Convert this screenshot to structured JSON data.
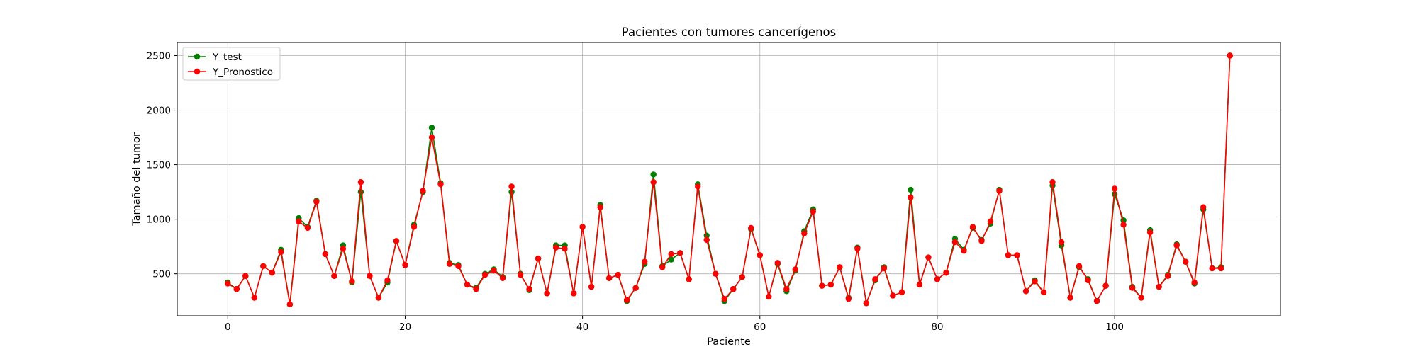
{
  "chart_data": {
    "type": "line",
    "title": "Pacientes con tumores cancerígenos",
    "xlabel": "Paciente",
    "ylabel": "Tamaño del tumor",
    "xlim": [
      -5.7,
      118.7
    ],
    "ylim": [
      115,
      2620
    ],
    "xticks": [
      0,
      20,
      40,
      60,
      80,
      100
    ],
    "yticks": [
      500,
      1000,
      1500,
      2000,
      2500
    ],
    "grid": true,
    "legend_position": "top-left",
    "series": [
      {
        "name": "Y_test",
        "color": "#008000",
        "values": [
          420,
          360,
          480,
          280,
          570,
          510,
          720,
          220,
          1010,
          930,
          1170,
          680,
          480,
          760,
          420,
          1250,
          480,
          280,
          420,
          800,
          580,
          950,
          1250,
          1840,
          1330,
          600,
          580,
          400,
          370,
          500,
          540,
          470,
          1250,
          500,
          350,
          640,
          320,
          760,
          760,
          320,
          930,
          380,
          1130,
          460,
          490,
          250,
          370,
          590,
          1410,
          570,
          630,
          690,
          450,
          1320,
          850,
          500,
          250,
          360,
          470,
          910,
          670,
          290,
          590,
          340,
          530,
          890,
          1090,
          390,
          400,
          560,
          280,
          740,
          230,
          440,
          560,
          300,
          330,
          1270,
          400,
          650,
          450,
          510,
          820,
          720,
          920,
          810,
          960,
          1270,
          670,
          670,
          340,
          440,
          330,
          1310,
          760,
          280,
          560,
          450,
          250,
          390,
          1230,
          990,
          380,
          280,
          900,
          380,
          490,
          770,
          610,
          410,
          1090,
          550,
          560,
          2500
        ],
        "x": [
          0,
          1,
          2,
          3,
          4,
          5,
          6,
          7,
          8,
          9,
          10,
          11,
          12,
          13,
          14,
          15,
          16,
          17,
          18,
          19,
          20,
          21,
          22,
          23,
          24,
          25,
          26,
          27,
          28,
          29,
          30,
          31,
          32,
          33,
          34,
          35,
          36,
          37,
          38,
          39,
          40,
          41,
          42,
          43,
          44,
          45,
          46,
          47,
          48,
          49,
          50,
          51,
          52,
          53,
          54,
          55,
          56,
          57,
          58,
          59,
          60,
          61,
          62,
          63,
          64,
          65,
          66,
          67,
          68,
          69,
          70,
          71,
          72,
          73,
          74,
          75,
          76,
          77,
          78,
          79,
          80,
          81,
          82,
          83,
          84,
          85,
          86,
          87,
          88,
          89,
          90,
          91,
          92,
          93,
          94,
          95,
          96,
          97,
          98,
          99,
          100,
          101,
          102,
          103,
          104,
          105,
          106,
          107,
          108,
          109,
          110,
          111,
          112,
          113
        ]
      },
      {
        "name": "Y_Pronostico",
        "color": "#ff0000",
        "values": [
          410,
          360,
          480,
          280,
          570,
          510,
          700,
          220,
          980,
          920,
          1160,
          680,
          480,
          730,
          430,
          1340,
          480,
          280,
          440,
          800,
          580,
          930,
          1260,
          1750,
          1320,
          590,
          570,
          400,
          360,
          490,
          530,
          460,
          1300,
          490,
          360,
          640,
          320,
          740,
          730,
          320,
          930,
          380,
          1110,
          460,
          490,
          260,
          370,
          610,
          1340,
          560,
          680,
          690,
          450,
          1300,
          810,
          500,
          270,
          360,
          470,
          920,
          670,
          290,
          600,
          360,
          540,
          870,
          1070,
          390,
          400,
          560,
          270,
          730,
          230,
          450,
          550,
          300,
          330,
          1200,
          400,
          650,
          450,
          510,
          790,
          710,
          930,
          800,
          980,
          1260,
          670,
          670,
          340,
          430,
          330,
          1340,
          790,
          280,
          570,
          440,
          250,
          390,
          1280,
          950,
          370,
          280,
          880,
          380,
          480,
          760,
          610,
          420,
          1110,
          550,
          550,
          2500
        ],
        "x": [
          0,
          1,
          2,
          3,
          4,
          5,
          6,
          7,
          8,
          9,
          10,
          11,
          12,
          13,
          14,
          15,
          16,
          17,
          18,
          19,
          20,
          21,
          22,
          23,
          24,
          25,
          26,
          27,
          28,
          29,
          30,
          31,
          32,
          33,
          34,
          35,
          36,
          37,
          38,
          39,
          40,
          41,
          42,
          43,
          44,
          45,
          46,
          47,
          48,
          49,
          50,
          51,
          52,
          53,
          54,
          55,
          56,
          57,
          58,
          59,
          60,
          61,
          62,
          63,
          64,
          65,
          66,
          67,
          68,
          69,
          70,
          71,
          72,
          73,
          74,
          75,
          76,
          77,
          78,
          79,
          80,
          81,
          82,
          83,
          84,
          85,
          86,
          87,
          88,
          89,
          90,
          91,
          92,
          93,
          94,
          95,
          96,
          97,
          98,
          99,
          100,
          101,
          102,
          103,
          104,
          105,
          106,
          107,
          108,
          109,
          110,
          111,
          112,
          113
        ]
      }
    ]
  }
}
